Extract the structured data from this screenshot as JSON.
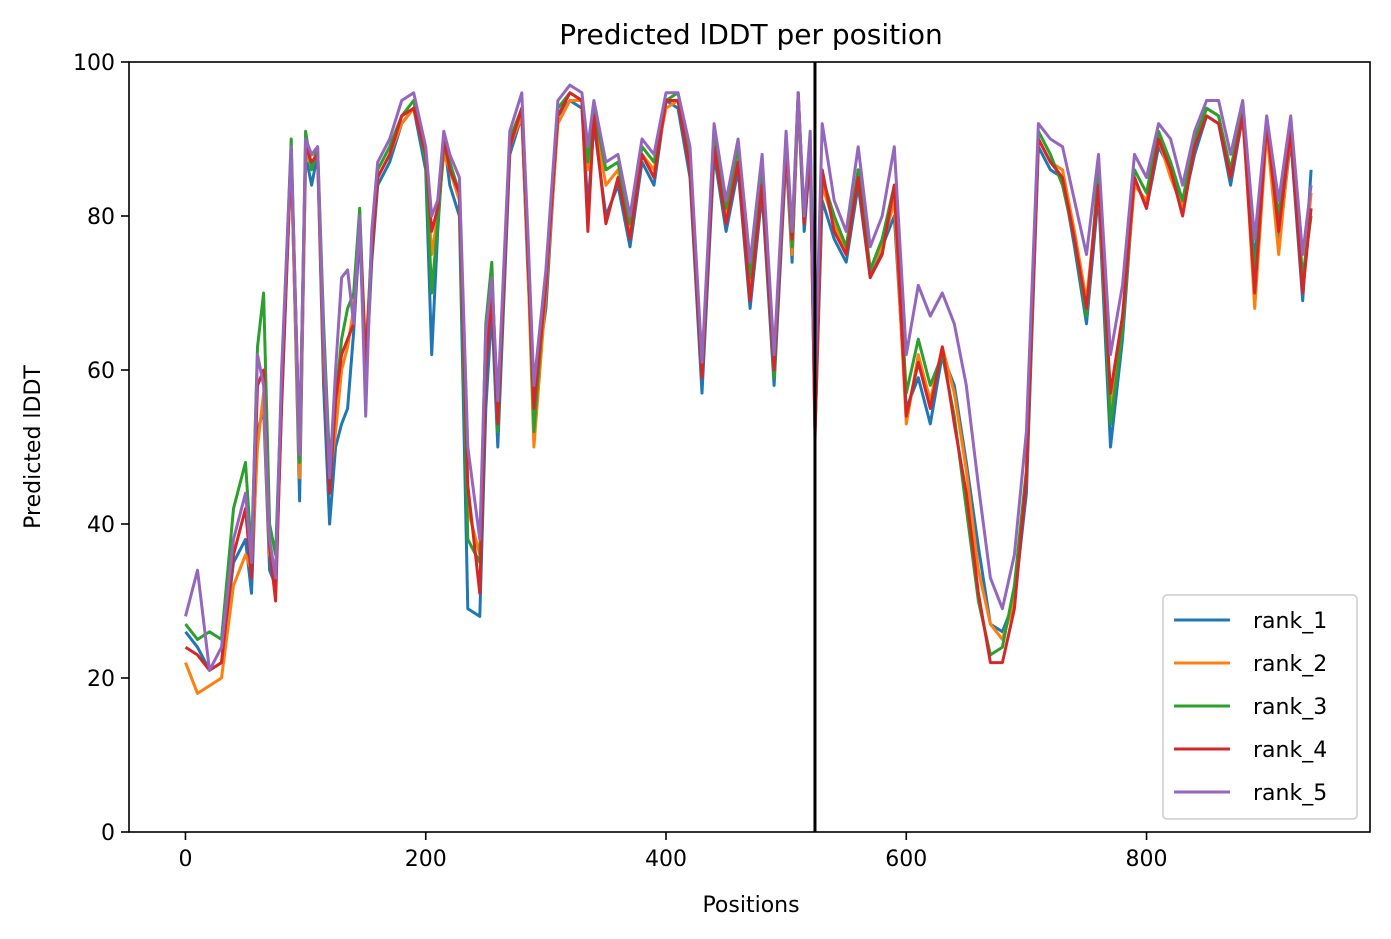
{
  "chart_data": {
    "type": "line",
    "title": "Predicted lDDT per position",
    "xlabel": "Positions",
    "ylabel": "Predicted lDDT",
    "xlim": [
      -47,
      986
    ],
    "ylim": [
      0,
      100
    ],
    "xticks": [
      0,
      200,
      400,
      600,
      800
    ],
    "yticks": [
      0,
      20,
      40,
      60,
      80,
      100
    ],
    "grid": false,
    "legend_position": "lower-right",
    "vertical_line_x": 524,
    "vertical_line_color": "#000000",
    "x": [
      0,
      10,
      20,
      30,
      40,
      50,
      55,
      60,
      65,
      70,
      75,
      80,
      88,
      95,
      100,
      105,
      110,
      115,
      120,
      125,
      130,
      135,
      140,
      145,
      150,
      155,
      160,
      170,
      180,
      190,
      200,
      205,
      210,
      215,
      220,
      228,
      235,
      245,
      250,
      255,
      260,
      270,
      280,
      285,
      290,
      300,
      310,
      320,
      330,
      335,
      340,
      350,
      360,
      370,
      380,
      390,
      400,
      410,
      420,
      430,
      440,
      450,
      460,
      470,
      480,
      490,
      500,
      505,
      510,
      515,
      520,
      524,
      530,
      540,
      550,
      560,
      570,
      580,
      590,
      600,
      610,
      620,
      630,
      640,
      650,
      660,
      670,
      680,
      690,
      700,
      710,
      720,
      730,
      740,
      750,
      760,
      770,
      780,
      790,
      800,
      810,
      820,
      830,
      840,
      850,
      860,
      870,
      880,
      890,
      900,
      910,
      920,
      930,
      937
    ],
    "series": [
      {
        "name": "rank_1",
        "color": "#1f77b4",
        "values": [
          26,
          24,
          21,
          22,
          35,
          38,
          31,
          52,
          55,
          34,
          32,
          55,
          88,
          43,
          88,
          84,
          88,
          58,
          40,
          50,
          53,
          55,
          65,
          78,
          58,
          74,
          84,
          87,
          92,
          94,
          86,
          62,
          78,
          90,
          84,
          80,
          29,
          28,
          55,
          68,
          50,
          88,
          93,
          73,
          57,
          68,
          93,
          95,
          94,
          81,
          92,
          80,
          84,
          76,
          87,
          84,
          95,
          94,
          85,
          57,
          88,
          78,
          86,
          68,
          83,
          58,
          88,
          74,
          95,
          78,
          88,
          52,
          82,
          77,
          74,
          84,
          72,
          76,
          80,
          55,
          59,
          53,
          62,
          58,
          48,
          37,
          27,
          26,
          30,
          44,
          89,
          86,
          85,
          76,
          66,
          83,
          50,
          64,
          85,
          81,
          89,
          86,
          81,
          88,
          93,
          92,
          84,
          93,
          74,
          92,
          76,
          90,
          69,
          86
        ]
      },
      {
        "name": "rank_2",
        "color": "#ff7f0e",
        "values": [
          22,
          18,
          19,
          20,
          32,
          36,
          34,
          50,
          57,
          36,
          34,
          58,
          87,
          46,
          87,
          88,
          88,
          61,
          46,
          52,
          60,
          63,
          68,
          80,
          62,
          76,
          85,
          88,
          92,
          94,
          88,
          75,
          80,
          88,
          86,
          82,
          42,
          36,
          62,
          72,
          54,
          89,
          93,
          74,
          50,
          70,
          92,
          95,
          95,
          86,
          93,
          84,
          86,
          78,
          88,
          86,
          94,
          95,
          87,
          60,
          90,
          80,
          88,
          70,
          85,
          60,
          89,
          75,
          95,
          80,
          89,
          54,
          84,
          79,
          75,
          86,
          73,
          76,
          82,
          53,
          62,
          56,
          63,
          57,
          47,
          34,
          27,
          25,
          30,
          46,
          90,
          87,
          86,
          78,
          69,
          84,
          55,
          66,
          84,
          82,
          90,
          85,
          81,
          89,
          94,
          93,
          85,
          94,
          68,
          91,
          75,
          91,
          71,
          83
        ]
      },
      {
        "name": "rank_3",
        "color": "#2ca02c",
        "values": [
          27,
          25,
          26,
          25,
          42,
          48,
          36,
          63,
          70,
          40,
          36,
          58,
          90,
          48,
          91,
          86,
          89,
          66,
          48,
          56,
          64,
          68,
          70,
          81,
          60,
          77,
          86,
          89,
          93,
          95,
          87,
          70,
          79,
          89,
          87,
          83,
          38,
          35,
          66,
          74,
          52,
          90,
          94,
          76,
          52,
          72,
          94,
          96,
          95,
          87,
          94,
          86,
          87,
          79,
          89,
          87,
          95,
          96,
          88,
          59,
          91,
          81,
          89,
          72,
          86,
          59,
          90,
          76,
          96,
          79,
          90,
          55,
          85,
          80,
          76,
          86,
          73,
          77,
          84,
          57,
          64,
          58,
          62,
          54,
          42,
          30,
          23,
          24,
          32,
          47,
          91,
          88,
          84,
          77,
          67,
          86,
          53,
          65,
          86,
          83,
          91,
          87,
          82,
          90,
          94,
          93,
          86,
          94,
          72,
          92,
          80,
          92,
          72,
          80
        ]
      },
      {
        "name": "rank_4",
        "color": "#d62728",
        "values": [
          24,
          23,
          21,
          22,
          36,
          42,
          33,
          58,
          60,
          37,
          30,
          56,
          88,
          50,
          89,
          87,
          88,
          62,
          44,
          56,
          62,
          64,
          66,
          79,
          61,
          75,
          85,
          88,
          93,
          94,
          88,
          78,
          81,
          90,
          86,
          83,
          45,
          31,
          60,
          70,
          53,
          89,
          94,
          75,
          55,
          71,
          93,
          96,
          95,
          78,
          93,
          79,
          85,
          77,
          88,
          85,
          95,
          95,
          86,
          59,
          89,
          79,
          87,
          69,
          84,
          60,
          89,
          77,
          96,
          79,
          89,
          51,
          86,
          78,
          75,
          85,
          72,
          75,
          84,
          54,
          61,
          55,
          63,
          53,
          44,
          31,
          22,
          22,
          29,
          46,
          90,
          87,
          85,
          77,
          68,
          84,
          57,
          67,
          85,
          81,
          90,
          86,
          80,
          89,
          93,
          92,
          85,
          93,
          70,
          92,
          78,
          91,
          70,
          81
        ]
      },
      {
        "name": "rank_5",
        "color": "#9467bd",
        "values": [
          28,
          34,
          21,
          24,
          38,
          44,
          35,
          62,
          58,
          38,
          33,
          60,
          89,
          49,
          90,
          88,
          89,
          64,
          46,
          60,
          72,
          73,
          66,
          80,
          54,
          78,
          87,
          90,
          95,
          96,
          89,
          80,
          82,
          91,
          88,
          85,
          50,
          38,
          65,
          72,
          56,
          91,
          96,
          78,
          58,
          73,
          95,
          97,
          96,
          89,
          95,
          87,
          88,
          80,
          90,
          88,
          96,
          96,
          89,
          61,
          92,
          82,
          90,
          74,
          88,
          62,
          91,
          78,
          96,
          80,
          91,
          58,
          92,
          82,
          78,
          89,
          76,
          80,
          89,
          62,
          71,
          67,
          70,
          66,
          58,
          45,
          33,
          29,
          36,
          52,
          92,
          90,
          89,
          82,
          75,
          88,
          62,
          71,
          88,
          85,
          92,
          90,
          84,
          91,
          95,
          95,
          88,
          95,
          77,
          93,
          82,
          93,
          75,
          84
        ]
      }
    ]
  }
}
